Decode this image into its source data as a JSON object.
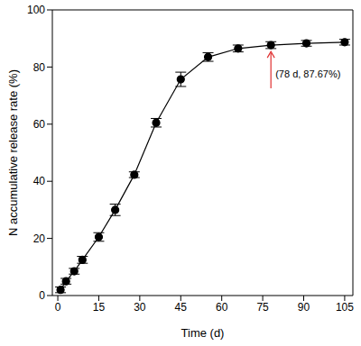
{
  "chart_data": {
    "type": "line",
    "x_label": "Time (d)",
    "y_label": "N accumulative release rate (%)",
    "x": [
      1,
      3,
      6,
      9,
      15,
      21,
      28,
      36,
      45,
      55,
      66,
      78,
      91,
      105
    ],
    "values": [
      2,
      5,
      8.5,
      12.5,
      20.5,
      30,
      42.3,
      60.5,
      75.7,
      83.5,
      86.5,
      87.67,
      88.3,
      88.7
    ],
    "errors": [
      1,
      1,
      1,
      1.2,
      1.5,
      2,
      1,
      1.5,
      2.5,
      1.5,
      1.2,
      1.2,
      1,
      1
    ],
    "color": "#000000",
    "marker": "circle",
    "grid": false,
    "xlim": [
      -2,
      108
    ],
    "ylim": [
      0,
      100
    ],
    "xticks": [
      0,
      15,
      30,
      45,
      60,
      75,
      90,
      105
    ],
    "yticks": [
      0,
      20,
      40,
      60,
      80,
      100
    ],
    "annotation": {
      "text": "(78 d, 87.67%)",
      "x": 78,
      "y": 87.67
    }
  }
}
